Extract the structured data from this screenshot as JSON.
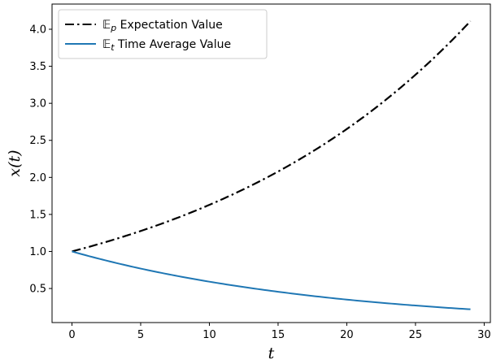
{
  "chart_data": {
    "type": "line",
    "title": "",
    "xlabel": "t",
    "ylabel": "x(t)",
    "xlim": [
      -1.45,
      30.45
    ],
    "ylim": [
      0.04,
      4.34
    ],
    "xticks": [
      0,
      5,
      10,
      15,
      20,
      25,
      30
    ],
    "yticks": [
      0.5,
      1.0,
      1.5,
      2.0,
      2.5,
      3.0,
      3.5,
      4.0
    ],
    "grid": false,
    "legend_position": "upper-left",
    "x": [
      0,
      5,
      10,
      15,
      20,
      25,
      29
    ],
    "series": [
      {
        "name": "𝔼p Expectation Value",
        "legend_symbol": "𝔼",
        "legend_subscript": "p",
        "legend_label": "Expectation Value",
        "color": "#000000",
        "style": "dash-dot",
        "values": [
          1.0,
          1.276,
          1.629,
          2.079,
          2.653,
          3.386,
          4.11
        ]
      },
      {
        "name": "𝔼t Time Average Value",
        "legend_symbol": "𝔼",
        "legend_subscript": "t",
        "legend_label": "Time Average Value",
        "color": "#1f77b4",
        "style": "solid",
        "values": [
          1.0,
          0.769,
          0.592,
          0.456,
          0.35,
          0.27,
          0.219
        ]
      }
    ]
  }
}
